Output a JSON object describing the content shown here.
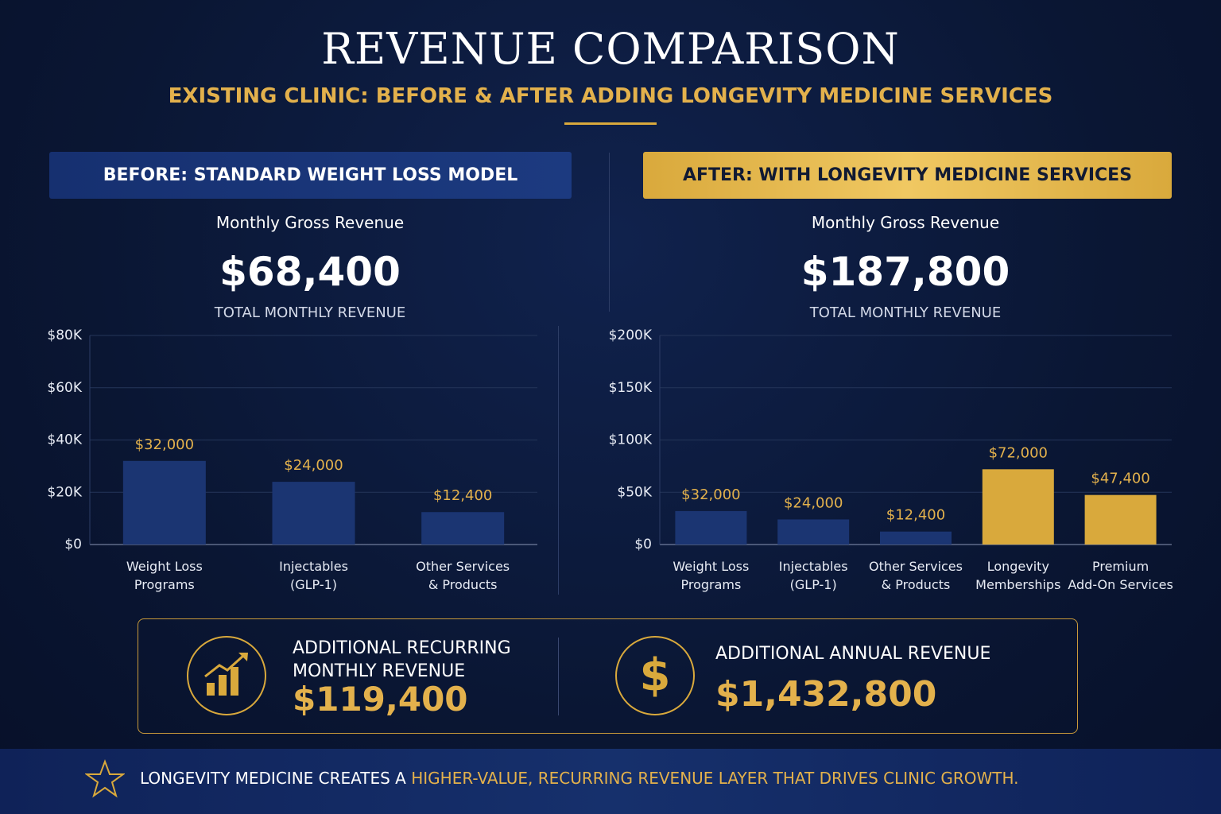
{
  "header": {
    "title": "REVENUE COMPARISON",
    "subtitle": "EXISTING CLINIC: BEFORE & AFTER ADDING LONGEVITY MEDICINE SERVICES"
  },
  "chart_data": [
    {
      "type": "bar",
      "title": "BEFORE: STANDARD WEIGHT LOSS MODEL",
      "subtitle": "Monthly Gross Revenue",
      "total": "$68,400",
      "total_label": "TOTAL MONTHLY REVENUE",
      "categories": [
        "Weight Loss\nPrograms",
        "Injectables\n(GLP-1)",
        "Other Services\n& Products"
      ],
      "values": [
        32000,
        24000,
        12400
      ],
      "value_labels": [
        "$32,000",
        "$24,000",
        "$12,400"
      ],
      "colors": [
        "#1b3572",
        "#1b3572",
        "#1b3572"
      ],
      "ylim": [
        0,
        80000
      ],
      "yticks": [
        {
          "value": 0,
          "label": "$0"
        },
        {
          "value": 20000,
          "label": "$20K"
        },
        {
          "value": 40000,
          "label": "$40K"
        },
        {
          "value": 60000,
          "label": "$60K"
        },
        {
          "value": 80000,
          "label": "$80K"
        }
      ],
      "grid": true
    },
    {
      "type": "bar",
      "title": "AFTER: WITH LONGEVITY MEDICINE SERVICES",
      "subtitle": "Monthly Gross Revenue",
      "total": "$187,800",
      "total_label": "TOTAL MONTHLY REVENUE",
      "categories": [
        "Weight Loss\nPrograms",
        "Injectables\n(GLP-1)",
        "Other Services\n& Products",
        "Longevity\nMemberships",
        "Premium\nAdd-On Services"
      ],
      "values": [
        32000,
        24000,
        12400,
        72000,
        47400
      ],
      "value_labels": [
        "$32,000",
        "$24,000",
        "$12,400",
        "$72,000",
        "$47,400"
      ],
      "colors": [
        "#1b3572",
        "#1b3572",
        "#1b3572",
        "#d9a93c",
        "#d9a93c"
      ],
      "ylim": [
        0,
        200000
      ],
      "yticks": [
        {
          "value": 0,
          "label": "$0"
        },
        {
          "value": 50000,
          "label": "$50K"
        },
        {
          "value": 100000,
          "label": "$100K"
        },
        {
          "value": 150000,
          "label": "$150K"
        },
        {
          "value": 200000,
          "label": "$200K"
        }
      ],
      "grid": true
    }
  ],
  "summary": {
    "monthly_label": "ADDITIONAL RECURRING\nMONTHLY REVENUE",
    "monthly_value": "$119,400",
    "annual_label": "ADDITIONAL ANNUAL REVENUE",
    "annual_value": "$1,432,800"
  },
  "footer": {
    "text": "LONGEVITY MEDICINE CREATES A ",
    "highlight": "HIGHER-VALUE, RECURRING REVENUE LAYER THAT DRIVES CLINIC GROWTH."
  }
}
